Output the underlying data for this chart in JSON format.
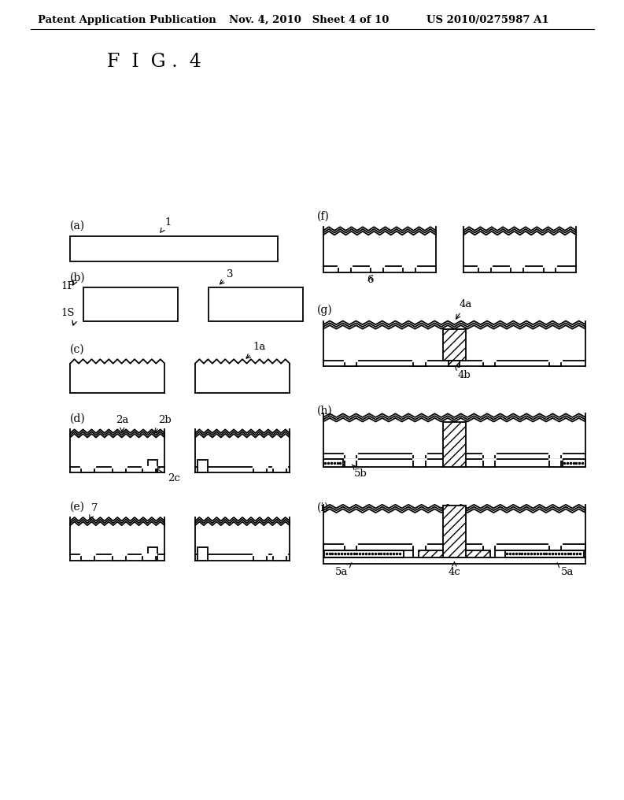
{
  "header_left": "Patent Application Publication",
  "header_mid": "Nov. 4, 2010   Sheet 4 of 10",
  "header_right": "US 2010/0275987 A1",
  "fig_label": "F  I  G .  4",
  "bg_color": "#ffffff",
  "line_color": "#000000"
}
